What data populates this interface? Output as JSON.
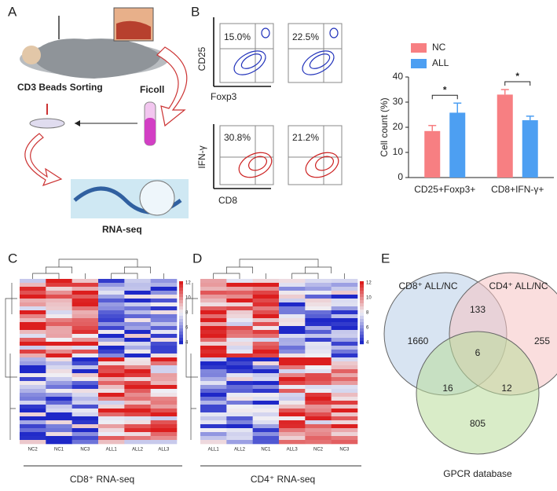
{
  "panel_labels": [
    "A",
    "B",
    "C",
    "D",
    "E"
  ],
  "panel_a": {
    "sorting": "CD3 Beads Sorting",
    "ficoll": "Ficoll",
    "rnaseq": "RNA-seq"
  },
  "panel_b_flow": {
    "percents": [
      "15.0%",
      "22.5%",
      "30.8%",
      "21.2%"
    ],
    "top_y": "CD25",
    "top_x": "Foxp3",
    "bottom_y": "IFN-γ",
    "bottom_x": "CD8"
  },
  "chart_data": {
    "type": "bar",
    "ylabel": "Cell count (%)",
    "categories": [
      "CD25+Foxp3+",
      "CD8+IFN-γ+"
    ],
    "series": [
      {
        "name": "NC",
        "color": "#f77f82",
        "values": [
          18.5,
          33
        ],
        "errors": [
          2.2,
          2
        ]
      },
      {
        "name": "ALL",
        "color": "#4d9ff2",
        "values": [
          25.8,
          22.8
        ],
        "errors": [
          3.8,
          1.6
        ]
      }
    ],
    "ylim": [
      0,
      40
    ],
    "yticks": [
      0,
      10,
      20,
      30,
      40
    ],
    "annotations": [
      "*",
      "*"
    ]
  },
  "heatmap_c": {
    "columns": [
      "NC2",
      "NC1",
      "NC3",
      "ALL1",
      "ALL2",
      "ALL3"
    ],
    "colorbar_ticks": [
      12,
      10,
      8,
      6,
      4
    ],
    "caption": "CD8⁺ RNA-seq"
  },
  "heatmap_d": {
    "columns": [
      "ALL1",
      "ALL2",
      "NC1",
      "ALL3",
      "NC2",
      "NC3"
    ],
    "colorbar_ticks": [
      12,
      10,
      8,
      6,
      4
    ],
    "caption": "CD4⁺ RNA-seq"
  },
  "venn": {
    "set_labels": [
      "CD8⁺ ALL/NC",
      "CD4⁺ ALL/NC",
      "GPCR database"
    ],
    "counts": [
      "1660",
      "133",
      "255",
      "6",
      "16",
      "12",
      "805"
    ]
  }
}
